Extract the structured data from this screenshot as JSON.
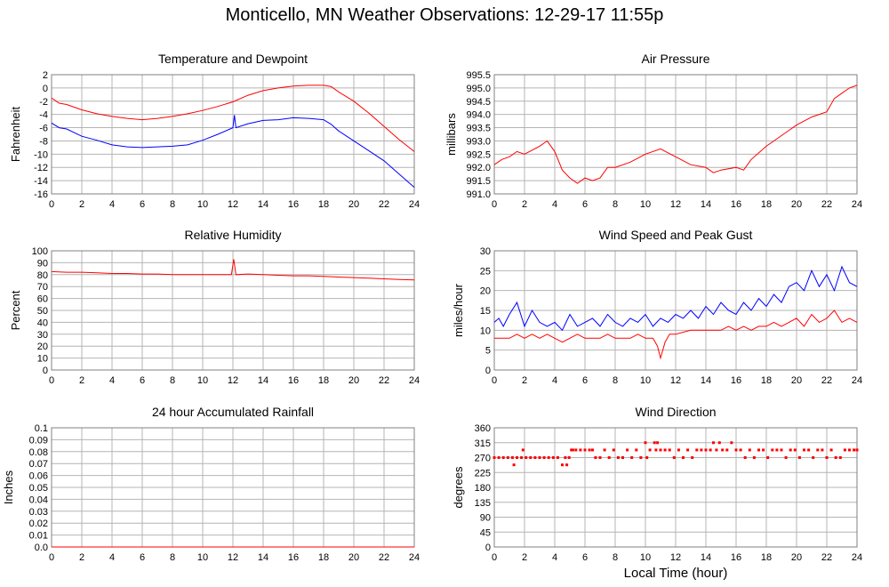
{
  "page_title": "Monticello, MN Weather Observations: 12-29-17 11:55p",
  "bottom_xlabel": "Local Time (hour)",
  "colors": {
    "red": "#ff0000",
    "blue": "#0000ff",
    "grid": "#b4b4b4",
    "frame": "#808080"
  },
  "chart_data": [
    {
      "id": "temp",
      "type": "line",
      "title": "Temperature and Dewpoint",
      "xlabel": "",
      "ylabel": "Fahrenheit",
      "xlim": [
        0,
        24
      ],
      "ylim": [
        -16,
        2
      ],
      "xticks": [
        "0",
        "2",
        "4",
        "6",
        "8",
        "10",
        "12",
        "14",
        "16",
        "18",
        "20",
        "22",
        "24"
      ],
      "yticks": [
        "2",
        "0",
        "-2",
        "-4",
        "-6",
        "-8",
        "-10",
        "-12",
        "-14",
        "-16"
      ],
      "series": [
        {
          "color": "red",
          "x": [
            0,
            0.5,
            1,
            2,
            3,
            4,
            5,
            6,
            7,
            8,
            9,
            10,
            11,
            12,
            13,
            14,
            15,
            16,
            17,
            18,
            18.5,
            19,
            20,
            21,
            22,
            23,
            24
          ],
          "y": [
            -1.5,
            -2.3,
            -2.5,
            -3.3,
            -3.9,
            -4.3,
            -4.6,
            -4.8,
            -4.6,
            -4.3,
            -3.9,
            -3.4,
            -2.8,
            -2.1,
            -1.1,
            -0.4,
            0,
            0.3,
            0.4,
            0.4,
            0.2,
            -0.6,
            -2,
            -3.8,
            -5.8,
            -7.8,
            -9.6
          ]
        },
        {
          "color": "blue",
          "x": [
            0,
            0.5,
            1,
            2,
            3,
            4,
            5,
            6,
            7,
            8,
            9,
            10,
            11,
            12,
            12.1,
            12.2,
            13,
            14,
            15,
            16,
            17,
            18,
            18.5,
            19,
            20,
            21,
            22,
            23,
            24
          ],
          "y": [
            -5.3,
            -6,
            -6.2,
            -7.3,
            -7.9,
            -8.6,
            -8.9,
            -9,
            -8.9,
            -8.8,
            -8.6,
            -7.9,
            -7,
            -6,
            -4.1,
            -6,
            -5.4,
            -4.9,
            -4.8,
            -4.5,
            -4.6,
            -4.8,
            -5.5,
            -6.5,
            -8,
            -9.5,
            -11,
            -13,
            -15
          ]
        }
      ]
    },
    {
      "id": "pressure",
      "type": "line",
      "title": "Air Pressure",
      "xlabel": "",
      "ylabel": "millibars",
      "xlim": [
        0,
        24
      ],
      "ylim": [
        991.0,
        995.5
      ],
      "xticks": [
        "0",
        "2",
        "4",
        "6",
        "8",
        "10",
        "12",
        "14",
        "16",
        "18",
        "20",
        "22",
        "24"
      ],
      "yticks": [
        "995.5",
        "995.0",
        "994.5",
        "994.0",
        "993.5",
        "993.0",
        "992.5",
        "992.0",
        "991.5",
        "991.0"
      ],
      "series": [
        {
          "color": "red",
          "x": [
            0,
            0.5,
            1,
            1.5,
            2,
            3,
            3.5,
            4,
            4.5,
            5,
            5.5,
            6,
            6.5,
            7,
            7.5,
            8,
            9,
            10,
            11,
            12,
            13,
            14,
            14.5,
            15,
            16,
            16.5,
            17,
            18,
            19,
            20,
            21,
            22,
            22.5,
            23,
            23.5,
            24
          ],
          "y": [
            992.1,
            992.3,
            992.4,
            992.6,
            992.5,
            992.8,
            993.0,
            992.6,
            991.9,
            991.6,
            991.4,
            991.6,
            991.5,
            991.6,
            992.0,
            992.0,
            992.2,
            992.5,
            992.7,
            992.4,
            992.1,
            992.0,
            991.8,
            991.9,
            992.0,
            991.9,
            992.3,
            992.8,
            993.2,
            993.6,
            993.9,
            994.1,
            994.6,
            994.8,
            995.0,
            995.1
          ]
        }
      ]
    },
    {
      "id": "rh",
      "type": "line",
      "title": "Relative Humidity",
      "xlabel": "",
      "ylabel": "Percent",
      "xlim": [
        0,
        24
      ],
      "ylim": [
        0,
        100
      ],
      "xticks": [
        "0",
        "2",
        "4",
        "6",
        "8",
        "10",
        "12",
        "14",
        "16",
        "18",
        "20",
        "22",
        "24"
      ],
      "yticks": [
        "100",
        "90",
        "80",
        "70",
        "60",
        "50",
        "40",
        "30",
        "20",
        "10",
        "0"
      ],
      "series": [
        {
          "color": "red",
          "x": [
            0,
            1,
            2,
            3,
            4,
            5,
            6,
            7,
            8,
            9,
            10,
            11,
            11.9,
            12.05,
            12.2,
            13,
            14,
            15,
            16,
            17,
            18,
            19,
            20,
            21,
            22,
            23,
            24
          ],
          "y": [
            82.5,
            82,
            82,
            81.5,
            81,
            81,
            80.5,
            80.5,
            80,
            80,
            80,
            80,
            80,
            93,
            80,
            80.5,
            80,
            79.5,
            79,
            79,
            78.5,
            78,
            77.5,
            77,
            76.5,
            76,
            75.5
          ]
        }
      ]
    },
    {
      "id": "wind",
      "type": "line",
      "title": "Wind Speed and Peak Gust",
      "xlabel": "",
      "ylabel": "miles/hour",
      "xlim": [
        0,
        24
      ],
      "ylim": [
        0,
        30
      ],
      "xticks": [
        "0",
        "2",
        "4",
        "6",
        "8",
        "10",
        "12",
        "14",
        "16",
        "18",
        "20",
        "22",
        "24"
      ],
      "yticks": [
        "30",
        "25",
        "20",
        "15",
        "10",
        "5",
        "0"
      ],
      "series": [
        {
          "color": "blue",
          "x": [
            0,
            0.3,
            0.6,
            1,
            1.5,
            2,
            2.5,
            3,
            3.5,
            4,
            4.5,
            5,
            5.5,
            6,
            6.5,
            7,
            7.5,
            8,
            8.5,
            9,
            9.5,
            10,
            10.5,
            11,
            11.5,
            12,
            12.5,
            13,
            13.5,
            14,
            14.5,
            15,
            15.5,
            16,
            16.5,
            17,
            17.5,
            18,
            18.5,
            19,
            19.5,
            20,
            20.5,
            21,
            21.5,
            22,
            22.5,
            23,
            23.5,
            24
          ],
          "y": [
            12,
            13,
            11,
            14,
            17,
            11,
            15,
            12,
            11,
            12,
            10,
            14,
            11,
            12,
            13,
            11,
            14,
            12,
            11,
            13,
            12,
            14,
            11,
            13,
            12,
            14,
            13,
            15,
            13,
            16,
            14,
            17,
            15,
            14,
            17,
            15,
            18,
            16,
            19,
            17,
            21,
            22,
            20,
            25,
            21,
            24,
            20,
            26,
            22,
            21
          ]
        },
        {
          "color": "red",
          "x": [
            0,
            0.5,
            1,
            1.5,
            2,
            2.5,
            3,
            3.5,
            4,
            4.5,
            5,
            5.5,
            6,
            6.5,
            7,
            7.5,
            8,
            8.5,
            9,
            9.5,
            10,
            10.5,
            10.8,
            11,
            11.3,
            11.6,
            12,
            13,
            14,
            15,
            15.5,
            16,
            16.5,
            17,
            17.5,
            18,
            18.5,
            19,
            19.5,
            20,
            20.5,
            21,
            21.5,
            22,
            22.5,
            23,
            23.5,
            24
          ],
          "y": [
            8,
            8,
            8,
            9,
            8,
            9,
            8,
            9,
            8,
            7,
            8,
            9,
            8,
            8,
            8,
            9,
            8,
            8,
            8,
            9,
            8,
            8,
            6,
            3,
            7,
            9,
            9,
            10,
            10,
            10,
            11,
            10,
            11,
            10,
            11,
            11,
            12,
            11,
            12,
            13,
            11,
            14,
            12,
            13,
            15,
            12,
            13,
            12
          ]
        }
      ]
    },
    {
      "id": "rain",
      "type": "line",
      "title": "24 hour Accumulated Rainfall",
      "xlabel": "",
      "ylabel": "Inches",
      "xlim": [
        0,
        24
      ],
      "ylim": [
        0,
        0.1
      ],
      "xticks": [
        "0",
        "2",
        "4",
        "6",
        "8",
        "10",
        "12",
        "14",
        "16",
        "18",
        "20",
        "22",
        "24"
      ],
      "yticks": [
        "0.1",
        "0.09",
        "0.08",
        "0.07",
        "0.06",
        "0.05",
        "0.04",
        "0.03",
        "0.02",
        "0.01",
        "0.0"
      ],
      "series": [
        {
          "color": "red",
          "x": [
            0,
            24
          ],
          "y": [
            0,
            0
          ]
        }
      ]
    },
    {
      "id": "dir",
      "type": "scatter",
      "title": "Wind Direction",
      "xlabel": "Local Time (hour)",
      "ylabel": "degrees",
      "xlim": [
        0,
        24
      ],
      "ylim": [
        0,
        360
      ],
      "xticks": [
        "0",
        "2",
        "4",
        "6",
        "8",
        "10",
        "12",
        "14",
        "16",
        "18",
        "20",
        "22",
        "24"
      ],
      "yticks": [
        "360",
        "315",
        "270",
        "225",
        "180",
        "135",
        "90",
        "45",
        "0"
      ],
      "series": [
        {
          "color": "red",
          "x": [
            0,
            0.3,
            0.6,
            0.9,
            1.2,
            1.3,
            1.5,
            1.8,
            1.9,
            2.1,
            2.4,
            2.7,
            3,
            3.3,
            3.6,
            3.9,
            4.2,
            4.5,
            4.7,
            4.8,
            4.95,
            5.1,
            5.2,
            5.4,
            5.7,
            6,
            6.3,
            6.5,
            6.7,
            7,
            7.3,
            7.6,
            7.9,
            8.2,
            8.5,
            8.8,
            9.1,
            9.4,
            9.7,
            10,
            10.1,
            10.3,
            10.6,
            10.7,
            10.8,
            11,
            11.3,
            11.6,
            11.9,
            12.2,
            12.5,
            12.8,
            13.1,
            13.4,
            13.7,
            14,
            14.3,
            14.5,
            14.7,
            14.9,
            15.1,
            15.4,
            15.7,
            16,
            16.3,
            16.6,
            16.9,
            17.2,
            17.5,
            17.8,
            18.1,
            18.4,
            18.7,
            19,
            19.3,
            19.6,
            19.9,
            20.2,
            20.5,
            20.8,
            21.1,
            21.4,
            21.7,
            22,
            22.3,
            22.6,
            22.9,
            23.2,
            23.5,
            23.8,
            24
          ],
          "y": [
            270,
            270,
            270,
            270,
            270,
            248,
            270,
            270,
            293,
            270,
            270,
            270,
            270,
            270,
            270,
            270,
            270,
            248,
            270,
            248,
            270,
            293,
            293,
            293,
            293,
            293,
            293,
            293,
            270,
            270,
            293,
            270,
            293,
            270,
            270,
            293,
            270,
            293,
            270,
            315,
            270,
            293,
            315,
            293,
            315,
            293,
            293,
            293,
            270,
            293,
            270,
            293,
            270,
            293,
            293,
            293,
            293,
            315,
            293,
            315,
            293,
            293,
            315,
            293,
            293,
            270,
            293,
            270,
            293,
            293,
            270,
            293,
            293,
            293,
            270,
            293,
            293,
            270,
            293,
            293,
            270,
            293,
            293,
            270,
            293,
            270,
            270,
            293,
            293,
            293,
            293
          ]
        }
      ]
    }
  ]
}
